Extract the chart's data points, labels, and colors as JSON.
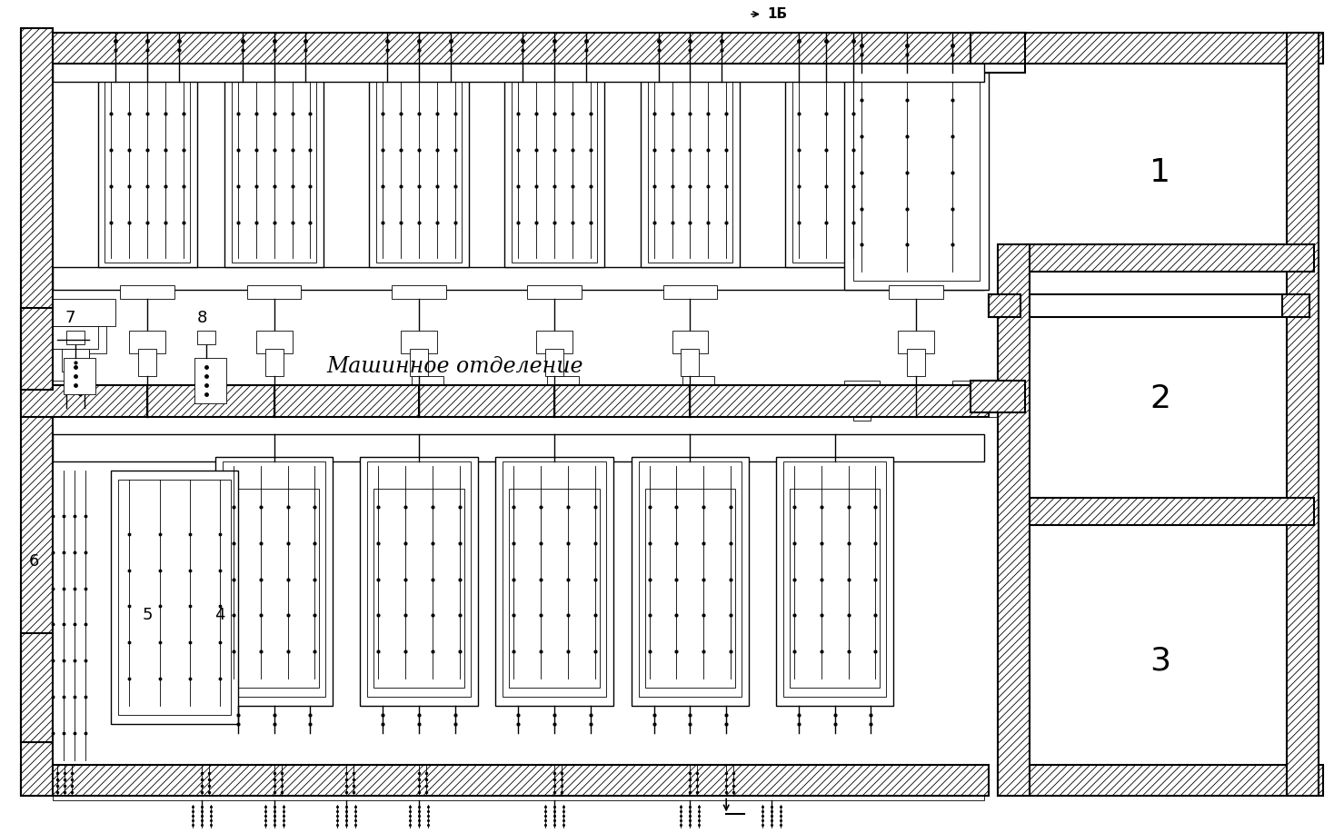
{
  "bg_color": "#ffffff",
  "lc": "#000000",
  "title_text": "Машинное отделение",
  "label_1B": "1Б",
  "labels_right": [
    "1",
    "2",
    "3"
  ],
  "labels_equip": [
    "7",
    "8",
    "6",
    "5",
    "4"
  ],
  "figsize": [
    14.79,
    9.17
  ],
  "dpi": 100,
  "wall_thick": 3.0,
  "lw_wall": 1.5,
  "lw_line": 1.0,
  "lw_thin": 0.6
}
